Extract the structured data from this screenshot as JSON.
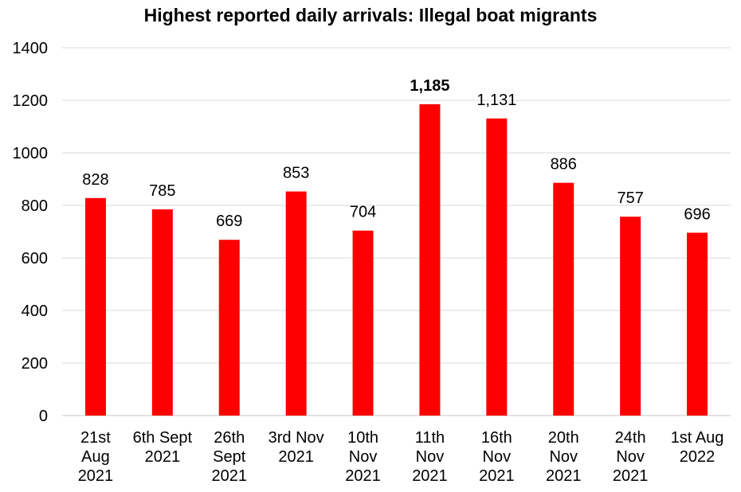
{
  "chart_data": {
    "type": "bar",
    "title": "Highest reported daily arrivals: Illegal boat migrants",
    "xlabel": "",
    "ylabel": "",
    "ylim": [
      0,
      1400
    ],
    "yticks": [
      "0",
      "200",
      "400",
      "600",
      "800",
      "1000",
      "1200",
      "1400"
    ],
    "ytick_values": [
      0,
      200,
      400,
      600,
      800,
      1000,
      1200,
      1400
    ],
    "grid": true,
    "legend": "none",
    "bar_color": "#ff0000",
    "grid_color": "#d9d9d9",
    "categories": [
      [
        "21st",
        "Aug",
        "2021"
      ],
      [
        "6th Sept",
        "2021"
      ],
      [
        "26th",
        "Sept",
        "2021"
      ],
      [
        "3rd Nov",
        "2021"
      ],
      [
        "10th",
        "Nov",
        "2021"
      ],
      [
        "11th",
        "Nov",
        "2021"
      ],
      [
        "16th",
        "Nov",
        "2021"
      ],
      [
        "20th",
        "Nov",
        "2021"
      ],
      [
        "24th",
        "Nov",
        "2021"
      ],
      [
        "1st Aug",
        "2022"
      ]
    ],
    "values": [
      828,
      785,
      669,
      853,
      704,
      1185,
      1131,
      886,
      757,
      696
    ],
    "data_labels": [
      "828",
      "785",
      "669",
      "853",
      "704",
      "1,185",
      "1,131",
      "886",
      "757",
      "696"
    ],
    "bold_label_index": 5
  }
}
